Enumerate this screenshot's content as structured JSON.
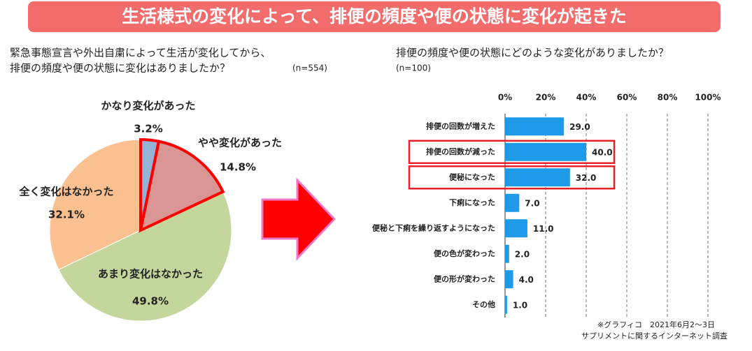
{
  "header": {
    "title": "生活様式の変化によって、排便の頻度や便の状態に変化が起きた"
  },
  "chart_data": [
    {
      "type": "pie",
      "subtitle": [
        "緊急事態宣言や外出自粛によって生活が変化してから、",
        "排便の頻度や便の状態に変化はありましたか？"
      ],
      "n_label": "(n=554)",
      "categories": [
        "かなり変化があった",
        "やや変化があった",
        "あまり変化はなかった",
        "全く変化はなかった"
      ],
      "values": [
        3.2,
        14.8,
        49.8,
        32.1
      ],
      "value_labels": [
        "3.2%",
        "14.8%",
        "49.8%",
        "32.1%"
      ],
      "colors": [
        "#95b3d7",
        "#d99694",
        "#c3d69b",
        "#fac090"
      ],
      "highlighted": [
        true,
        true,
        false,
        false
      ],
      "highlight_color": "#ff0000"
    },
    {
      "type": "bar",
      "subtitle": [
        "排便の頻度や便の状態にどのような変化がありましたか？"
      ],
      "n_label": "(n=100)",
      "categories": [
        "排便の回数が増えた",
        "排便の回数が減った",
        "便秘になった",
        "下痢になった",
        "便秘と下痢を繰り返すようになった",
        "便の色が変わった",
        "便の形が変わった",
        "その他"
      ],
      "values": [
        29.0,
        40.0,
        32.0,
        7.0,
        11.0,
        2.0,
        4.0,
        1.0
      ],
      "value_labels": [
        "29.0",
        "40.0",
        "32.0",
        "7.0",
        "11.0",
        "2.0",
        "4.0",
        "1.0"
      ],
      "color": "#1f9ae8",
      "highlighted": [
        false,
        true,
        true,
        false,
        false,
        false,
        false,
        false
      ],
      "highlight_color": "#e8202a",
      "xlim": [
        0,
        100
      ],
      "xticks": [
        {
          "value": 0,
          "label": "0%"
        },
        {
          "value": 20,
          "label": "20%"
        },
        {
          "value": 40,
          "label": "40%"
        },
        {
          "value": 60,
          "label": "60%"
        },
        {
          "value": 80,
          "label": "80%"
        },
        {
          "value": 100,
          "label": "100%"
        }
      ],
      "grid": true
    }
  ],
  "note": [
    "※グラフィコ　2021年6月2～3日",
    "サプリメントに関するインターネット調査"
  ]
}
